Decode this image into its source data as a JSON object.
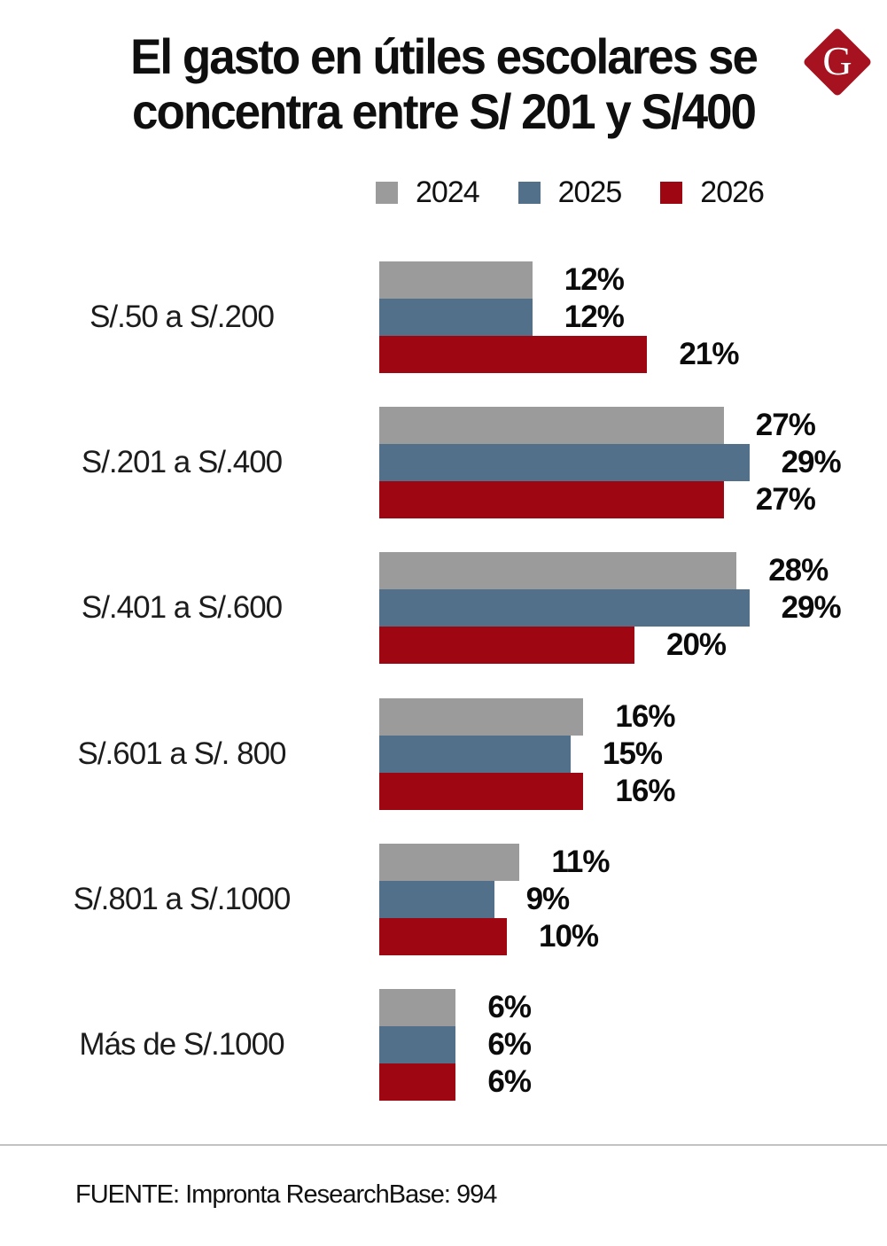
{
  "title": {
    "line1": "El gasto en útiles escolares se",
    "line2": "concentra entre S/ 201 y S/400"
  },
  "logo": {
    "letter": "G",
    "color": "#a6121f"
  },
  "legend": [
    {
      "label": "2024",
      "color": "#9b9b9b"
    },
    {
      "label": "2025",
      "color": "#53708a"
    },
    {
      "label": "2026",
      "color": "#9e0612"
    }
  ],
  "chart_data": {
    "type": "bar",
    "orientation": "horizontal",
    "title": "El gasto en útiles escolares se concentra entre S/ 201 y S/400",
    "categories": [
      "S/.50 a S/.200",
      "S/.201 a S/.400",
      "S/.401 a S/.600",
      "S/.601 a S/. 800",
      "S/.801 a S/.1000",
      "Más de S/.1000"
    ],
    "series": [
      {
        "name": "2024",
        "color": "#9b9b9b",
        "values": [
          12,
          27,
          28,
          16,
          11,
          6
        ]
      },
      {
        "name": "2025",
        "color": "#53708a",
        "values": [
          12,
          29,
          29,
          15,
          9,
          6
        ]
      },
      {
        "name": "2026",
        "color": "#9e0612",
        "values": [
          21,
          27,
          20,
          16,
          10,
          6
        ]
      }
    ],
    "value_suffix": "%",
    "xlim": [
      0,
      29
    ],
    "grid": false,
    "legend_position": "top"
  },
  "footer": {
    "source": "FUENTE: Impronta Research",
    "base": "Base: 994"
  }
}
